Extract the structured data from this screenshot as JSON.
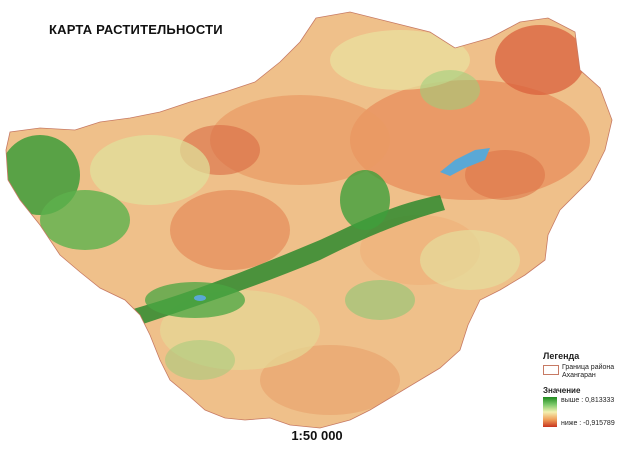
{
  "title": "КАРТА РАСТИТЕЛЬНОСТИ",
  "scale": "1:50 000",
  "legend": {
    "heading": "Легенда",
    "boundary_label": "Граница района Ахангаран",
    "value_heading": "Значение",
    "high_label": "выше : 0,813333",
    "low_label": "ниже : -0,915789",
    "high_value": 0.813333,
    "low_value": -0.915789
  },
  "colors": {
    "high": "#1e8a1e",
    "mid": "#f3f0b0",
    "low": "#c8331e",
    "water": "#5aa8d6",
    "boundary": "#c77a64"
  }
}
